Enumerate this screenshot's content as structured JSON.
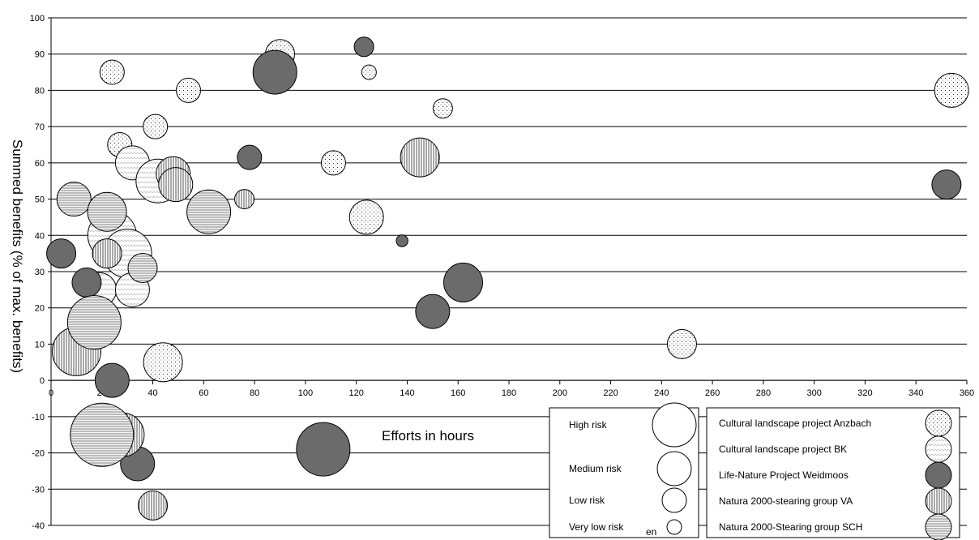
{
  "chart_data": {
    "type": "scatter",
    "variant": "bubble",
    "title": "",
    "xlabel": "Efforts in hours",
    "ylabel": "Summed benefits (% of max. benefits)",
    "xlim": [
      0,
      360
    ],
    "ylim": [
      -40,
      100
    ],
    "x_ticks": [
      "0",
      "20",
      "40",
      "60",
      "80",
      "100",
      "120",
      "140",
      "160",
      "180",
      "200",
      "220",
      "240",
      "260",
      "280",
      "300",
      "320",
      "340",
      "360"
    ],
    "y_ticks": [
      "100",
      "90",
      "80",
      "70",
      "60",
      "50",
      "40",
      "30",
      "20",
      "10",
      "0",
      "-10",
      "-20",
      "-30",
      "-40"
    ],
    "grid": {
      "horizontal": true,
      "vertical": false
    },
    "risk_scale": {
      "items": [
        {
          "label": "High risk",
          "size": 4
        },
        {
          "label": "Medium risk",
          "size": 3
        },
        {
          "label": "Low risk",
          "size": 2
        },
        {
          "label": "Very low risk",
          "size": 1
        }
      ],
      "partial_text": "en"
    },
    "series": [
      {
        "name": "Cultural landscape project Anzbach",
        "pattern": "dots",
        "points": [
          {
            "x": 24,
            "y": 85,
            "size": 2
          },
          {
            "x": 54,
            "y": 80,
            "size": 2
          },
          {
            "x": 90,
            "y": 90,
            "size": 2.5
          },
          {
            "x": 125,
            "y": 85,
            "size": 1
          },
          {
            "x": 154,
            "y": 75,
            "size": 1.5
          },
          {
            "x": 41,
            "y": 70,
            "size": 2
          },
          {
            "x": 27,
            "y": 65,
            "size": 2
          },
          {
            "x": 111,
            "y": 60,
            "size": 2
          },
          {
            "x": 124,
            "y": 45,
            "size": 3
          },
          {
            "x": 44,
            "y": 5,
            "size": 3.5
          },
          {
            "x": 248,
            "y": 10,
            "size": 2.5
          },
          {
            "x": 354,
            "y": 80,
            "size": 3
          }
        ]
      },
      {
        "name": "Cultural landscape project BK",
        "pattern": "zigzag",
        "points": [
          {
            "x": 32,
            "y": 60,
            "size": 3
          },
          {
            "x": 42,
            "y": 55,
            "size": 4
          },
          {
            "x": 24,
            "y": 40,
            "size": 4.5
          },
          {
            "x": 30,
            "y": 35,
            "size": 4.5
          },
          {
            "x": 19,
            "y": 25,
            "size": 3
          },
          {
            "x": 32,
            "y": 25,
            "size": 3
          }
        ]
      },
      {
        "name": "Life-Nature Project Weidmoos",
        "pattern": "solid",
        "points": [
          {
            "x": 123,
            "y": 92,
            "size": 1.5
          },
          {
            "x": 88,
            "y": 85,
            "size": 4
          },
          {
            "x": 78,
            "y": 61.5,
            "size": 2
          },
          {
            "x": 4,
            "y": 35,
            "size": 2.5
          },
          {
            "x": 14,
            "y": 27,
            "size": 2.5
          },
          {
            "x": 162,
            "y": 27,
            "size": 3.5
          },
          {
            "x": 150,
            "y": 19,
            "size": 3
          },
          {
            "x": 138,
            "y": 38.5,
            "size": 0.7
          },
          {
            "x": 24,
            "y": 0,
            "size": 3
          },
          {
            "x": 107,
            "y": -19,
            "size": 5
          },
          {
            "x": 34,
            "y": -23,
            "size": 3
          },
          {
            "x": 352,
            "y": 54,
            "size": 2.5
          }
        ]
      },
      {
        "name": "Natura 2000-stearing group VA",
        "pattern": "vertical",
        "points": [
          {
            "x": 48,
            "y": 57,
            "size": 3
          },
          {
            "x": 49,
            "y": 54,
            "size": 3
          },
          {
            "x": 145,
            "y": 61.5,
            "size": 3.5
          },
          {
            "x": 22,
            "y": 35,
            "size": 2.5
          },
          {
            "x": 10,
            "y": 8,
            "size": 4.5
          },
          {
            "x": 40,
            "y": -34.5,
            "size": 2.5
          },
          {
            "x": 28,
            "y": -15,
            "size": 4
          },
          {
            "x": 76,
            "y": 50,
            "size": 1.5
          }
        ]
      },
      {
        "name": "Natura 2000-Stearing group SCH",
        "pattern": "horizontal",
        "points": [
          {
            "x": 9,
            "y": 50,
            "size": 3
          },
          {
            "x": 22,
            "y": 46.5,
            "size": 3.5
          },
          {
            "x": 62,
            "y": 46.5,
            "size": 4
          },
          {
            "x": 17,
            "y": 16,
            "size": 5
          },
          {
            "x": 20,
            "y": -15,
            "size": 6
          },
          {
            "x": 36,
            "y": 31,
            "size": 2.5
          }
        ]
      }
    ],
    "legend_placement": "bottom-right"
  }
}
